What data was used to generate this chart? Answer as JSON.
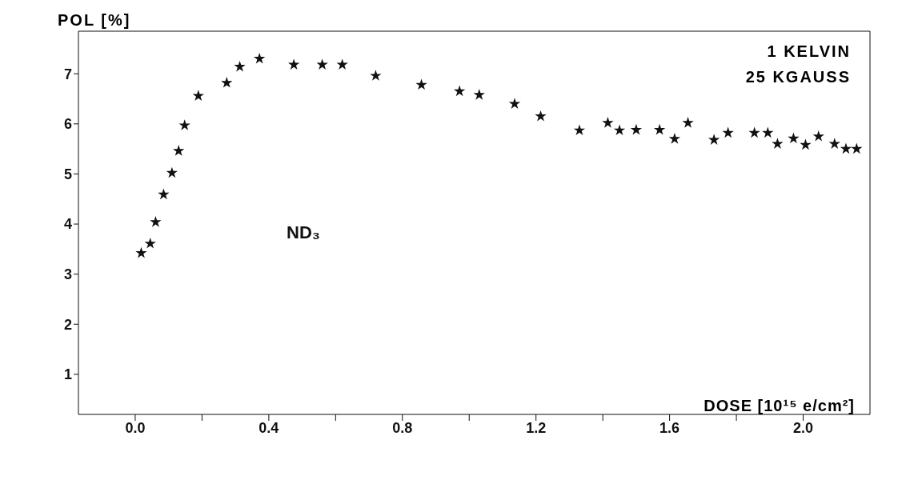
{
  "chart_data": {
    "type": "scatter",
    "xlabel": "DOSE [10¹⁵ e/cm²]",
    "ylabel": "POL [%]",
    "annotations": [
      "1 KELVIN",
      "25 KGAUSS"
    ],
    "xlim": [
      -0.17,
      2.2
    ],
    "ylim": [
      0.2,
      7.85
    ],
    "xticks": [
      {
        "value": 0,
        "label": "0.0"
      },
      {
        "value": 0.2,
        "label": null
      },
      {
        "value": 0.4,
        "label": "0.4"
      },
      {
        "value": 0.6,
        "label": null
      },
      {
        "value": 0.8,
        "label": "0.8"
      },
      {
        "value": 1.0,
        "label": null
      },
      {
        "value": 1.2,
        "label": "1.2"
      },
      {
        "value": 1.4,
        "label": null
      },
      {
        "value": 1.6,
        "label": "1.6"
      },
      {
        "value": 1.8,
        "label": null
      },
      {
        "value": 2.0,
        "label": "2.0"
      }
    ],
    "yticks": [
      1,
      2,
      3,
      4,
      5,
      6,
      7
    ],
    "marker": "star",
    "grid": false,
    "legend": false,
    "series": [
      {
        "name": "ND₃",
        "color": "#111111",
        "x": [
          0.018,
          0.045,
          0.061,
          0.085,
          0.11,
          0.13,
          0.148,
          0.189,
          0.274,
          0.313,
          0.372,
          0.475,
          0.56,
          0.62,
          0.72,
          0.857,
          0.971,
          1.03,
          1.136,
          1.214,
          1.33,
          1.415,
          1.45,
          1.5,
          1.57,
          1.615,
          1.655,
          1.733,
          1.775,
          1.854,
          1.894,
          1.923,
          1.971,
          2.007,
          2.046,
          2.094,
          2.128,
          2.16
        ],
        "values": [
          3.42,
          3.61,
          4.04,
          4.59,
          5.02,
          5.46,
          5.97,
          6.56,
          6.82,
          7.14,
          7.3,
          7.18,
          7.18,
          7.18,
          6.96,
          6.78,
          6.65,
          6.58,
          6.4,
          6.15,
          5.87,
          6.02,
          5.87,
          5.88,
          5.88,
          5.7,
          6.02,
          5.68,
          5.82,
          5.82,
          5.82,
          5.6,
          5.71,
          5.58,
          5.75,
          5.6,
          5.5,
          5.5
        ]
      }
    ]
  }
}
